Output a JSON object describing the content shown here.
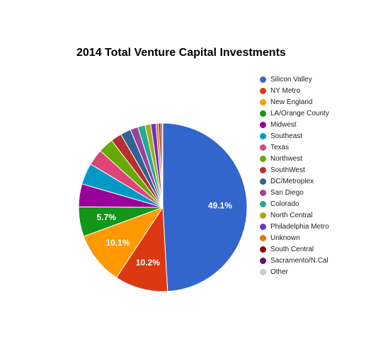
{
  "chart_data": {
    "type": "pie",
    "title": "2014 Total Venture Capital Investments",
    "legend_position": "right",
    "slices": [
      {
        "label": "Silicon Valley",
        "value": 49.1,
        "color": "#3366cc",
        "show_label": true
      },
      {
        "label": "NY Metro",
        "value": 10.2,
        "color": "#dc3912",
        "show_label": true
      },
      {
        "label": "New England",
        "value": 10.1,
        "color": "#ff9900",
        "show_label": true
      },
      {
        "label": "LA/Orange County",
        "value": 5.7,
        "color": "#109618",
        "show_label": true
      },
      {
        "label": "Midwest",
        "value": 4.4,
        "color": "#990099",
        "show_label": false
      },
      {
        "label": "Southeast",
        "value": 4.1,
        "color": "#0099c6",
        "show_label": false
      },
      {
        "label": "Texas",
        "value": 3.1,
        "color": "#dd4477",
        "show_label": false
      },
      {
        "label": "Northwest",
        "value": 2.9,
        "color": "#66aa00",
        "show_label": false
      },
      {
        "label": "SouthWest",
        "value": 2.1,
        "color": "#b82e2e",
        "show_label": false
      },
      {
        "label": "DC/Metroplex",
        "value": 2.0,
        "color": "#316395",
        "show_label": false
      },
      {
        "label": "San Diego",
        "value": 1.5,
        "color": "#994499",
        "show_label": false
      },
      {
        "label": "Colorado",
        "value": 1.4,
        "color": "#22aa99",
        "show_label": false
      },
      {
        "label": "North Central",
        "value": 1.1,
        "color": "#aaaa11",
        "show_label": false
      },
      {
        "label": "Philadelphia Metro",
        "value": 1.0,
        "color": "#6633cc",
        "show_label": false
      },
      {
        "label": "Unknown",
        "value": 0.5,
        "color": "#e67300",
        "show_label": false
      },
      {
        "label": "South Central",
        "value": 0.4,
        "color": "#8b0707",
        "show_label": false
      },
      {
        "label": "Sacramento/N.Cal",
        "value": 0.3,
        "color": "#651067",
        "show_label": false
      },
      {
        "label": "Other",
        "value": 0.1,
        "color": "#cccccc",
        "show_label": false
      }
    ]
  }
}
